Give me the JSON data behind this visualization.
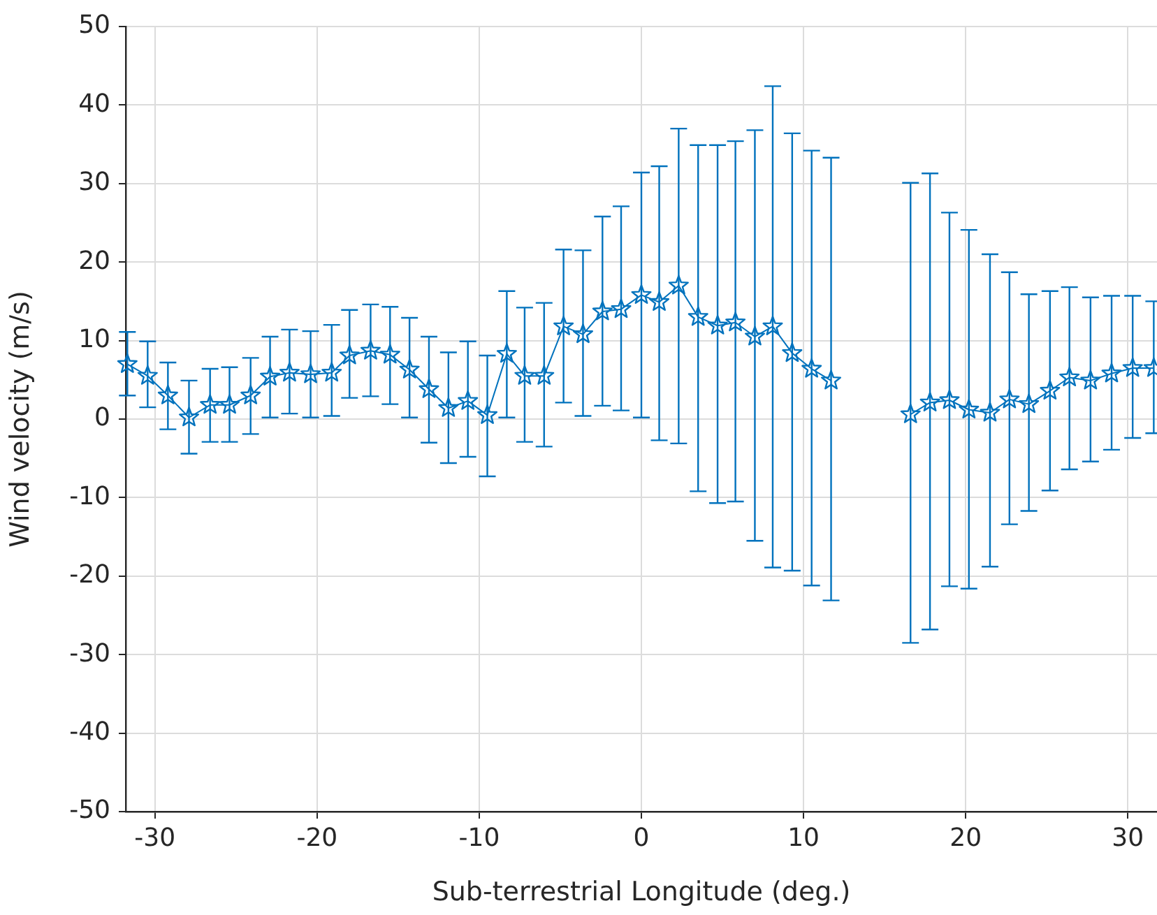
{
  "chart_data": {
    "type": "line",
    "xlabel": "Sub-terrestrial Longitude (deg.)",
    "ylabel": "Wind velocity (m/s)",
    "xlim": [
      -31.8,
      31.8
    ],
    "xticks": [
      -30,
      -20,
      -10,
      0,
      10,
      20,
      30
    ],
    "ylim": [
      -50,
      50
    ],
    "yticks": [
      -50,
      -40,
      -30,
      -20,
      -10,
      0,
      10,
      20,
      30,
      40,
      50
    ],
    "grid": true,
    "marker": "star",
    "line_style": "solid",
    "series": [
      {
        "color": "#0072bd",
        "x": [
          -31.7,
          -30.45,
          -29.2,
          -27.9,
          -26.6,
          -25.4,
          -24.1,
          -22.9,
          -21.7,
          -20.4,
          -19.1,
          -18.0,
          -16.7,
          -15.5,
          -14.3,
          -13.1,
          -11.9,
          -10.7,
          -9.5,
          -8.3,
          -7.2,
          -6.0,
          -4.8,
          -3.6,
          -2.4,
          -1.25,
          0.0,
          1.1,
          2.3,
          3.5,
          4.7,
          5.8,
          7.0,
          8.1,
          9.3,
          10.5,
          11.7,
          null,
          16.6,
          17.8,
          19.0,
          20.2,
          21.5,
          22.7,
          23.9,
          25.2,
          26.4,
          27.7,
          29.0,
          30.3,
          31.6
        ],
        "values": [
          7.0,
          5.5,
          3.0,
          0.2,
          1.8,
          1.8,
          3.0,
          5.4,
          5.9,
          5.7,
          5.9,
          8.1,
          8.7,
          8.2,
          6.3,
          3.8,
          1.4,
          2.3,
          0.5,
          8.3,
          5.5,
          5.5,
          11.8,
          10.8,
          13.7,
          14.0,
          15.8,
          14.9,
          17.0,
          13.0,
          11.9,
          12.3,
          10.5,
          11.8,
          8.4,
          6.4,
          4.9,
          null,
          0.6,
          2.1,
          2.4,
          1.2,
          0.8,
          2.5,
          1.9,
          3.6,
          5.3,
          4.9,
          5.8,
          6.5,
          6.5
        ],
        "errors": [
          [
            3.0,
            11.1
          ],
          [
            1.5,
            9.9
          ],
          [
            -1.3,
            7.2
          ],
          [
            -4.4,
            4.9
          ],
          [
            -2.9,
            6.4
          ],
          [
            -2.9,
            6.6
          ],
          [
            -1.9,
            7.8
          ],
          [
            0.2,
            10.5
          ],
          [
            0.7,
            11.4
          ],
          [
            0.2,
            11.2
          ],
          [
            0.4,
            12.0
          ],
          [
            2.7,
            13.9
          ],
          [
            2.9,
            14.6
          ],
          [
            1.9,
            14.3
          ],
          [
            0.2,
            12.9
          ],
          [
            -3.0,
            10.5
          ],
          [
            -5.6,
            8.5
          ],
          [
            -4.8,
            9.9
          ],
          [
            -7.3,
            8.1
          ],
          [
            0.2,
            16.3
          ],
          [
            -2.9,
            14.2
          ],
          [
            -3.5,
            14.8
          ],
          [
            2.1,
            21.6
          ],
          [
            0.4,
            21.5
          ],
          [
            1.7,
            25.8
          ],
          [
            1.1,
            27.1
          ],
          [
            0.2,
            31.4
          ],
          [
            -2.7,
            32.2
          ],
          [
            -3.1,
            37.0
          ],
          [
            -9.2,
            34.9
          ],
          [
            -10.7,
            34.9
          ],
          [
            -10.5,
            35.4
          ],
          [
            -15.5,
            36.8
          ],
          [
            -18.9,
            42.4
          ],
          [
            -19.3,
            36.4
          ],
          [
            -21.2,
            34.2
          ],
          [
            -23.1,
            33.3
          ],
          null,
          [
            -28.5,
            30.1
          ],
          [
            -26.8,
            31.3
          ],
          [
            -21.3,
            26.3
          ],
          [
            -21.6,
            24.1
          ],
          [
            -18.8,
            21.0
          ],
          [
            -13.4,
            18.7
          ],
          [
            -11.7,
            15.9
          ],
          [
            -9.1,
            16.3
          ],
          [
            -6.4,
            16.8
          ],
          [
            -5.4,
            15.5
          ],
          [
            -3.9,
            15.7
          ],
          [
            -2.4,
            15.7
          ],
          [
            -1.8,
            15.0
          ]
        ]
      }
    ]
  }
}
